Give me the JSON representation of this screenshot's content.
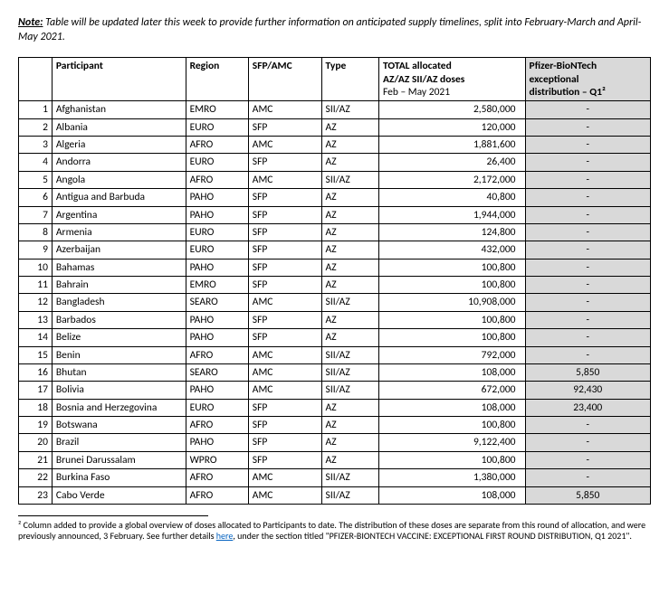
{
  "note_label": "Note:",
  "note_text": " Table will be updated later this week to provide further information on anticipated supply timelines, split into February-March and April-May 2021.",
  "headers": {
    "participant": "Participant",
    "region": "Region",
    "sfp_amc": "SFP/AMC",
    "type": "Type",
    "total_l1": "TOTAL allocated",
    "total_l2": "AZ/AZ SII/AZ doses",
    "total_l3": "Feb – May 2021",
    "pfizer_l1": "Pfizer-BioNTech",
    "pfizer_l2": "exceptional",
    "pfizer_l3": "distribution – Q1²"
  },
  "rows": [
    {
      "n": "1",
      "participant": "Afghanistan",
      "region": "EMRO",
      "sfp": "AMC",
      "type": "SII/AZ",
      "total": "2,580,000",
      "pfz": "-"
    },
    {
      "n": "2",
      "participant": "Albania",
      "region": "EURO",
      "sfp": "SFP",
      "type": "AZ",
      "total": "120,000",
      "pfz": "-"
    },
    {
      "n": "3",
      "participant": "Algeria",
      "region": "AFRO",
      "sfp": "AMC",
      "type": "AZ",
      "total": "1,881,600",
      "pfz": "-"
    },
    {
      "n": "4",
      "participant": "Andorra",
      "region": "EURO",
      "sfp": "SFP",
      "type": "AZ",
      "total": "26,400",
      "pfz": "-"
    },
    {
      "n": "5",
      "participant": "Angola",
      "region": "AFRO",
      "sfp": "AMC",
      "type": "SII/AZ",
      "total": "2,172,000",
      "pfz": "-"
    },
    {
      "n": "6",
      "participant": "Antigua and Barbuda",
      "region": "PAHO",
      "sfp": "SFP",
      "type": "AZ",
      "total": "40,800",
      "pfz": "-"
    },
    {
      "n": "7",
      "participant": "Argentina",
      "region": "PAHO",
      "sfp": "SFP",
      "type": "AZ",
      "total": "1,944,000",
      "pfz": "-"
    },
    {
      "n": "8",
      "participant": "Armenia",
      "region": "EURO",
      "sfp": "SFP",
      "type": "AZ",
      "total": "124,800",
      "pfz": "-"
    },
    {
      "n": "9",
      "participant": "Azerbaijan",
      "region": "EURO",
      "sfp": "SFP",
      "type": "AZ",
      "total": "432,000",
      "pfz": "-"
    },
    {
      "n": "10",
      "participant": "Bahamas",
      "region": "PAHO",
      "sfp": "SFP",
      "type": "AZ",
      "total": "100,800",
      "pfz": "-"
    },
    {
      "n": "11",
      "participant": "Bahrain",
      "region": "EMRO",
      "sfp": "SFP",
      "type": "AZ",
      "total": "100,800",
      "pfz": "-"
    },
    {
      "n": "12",
      "participant": "Bangladesh",
      "region": "SEARO",
      "sfp": "AMC",
      "type": "SII/AZ",
      "total": "10,908,000",
      "pfz": "-"
    },
    {
      "n": "13",
      "participant": "Barbados",
      "region": "PAHO",
      "sfp": "SFP",
      "type": "AZ",
      "total": "100,800",
      "pfz": "-"
    },
    {
      "n": "14",
      "participant": "Belize",
      "region": "PAHO",
      "sfp": "SFP",
      "type": "AZ",
      "total": "100,800",
      "pfz": "-"
    },
    {
      "n": "15",
      "participant": "Benin",
      "region": "AFRO",
      "sfp": "AMC",
      "type": "SII/AZ",
      "total": "792,000",
      "pfz": "-"
    },
    {
      "n": "16",
      "participant": "Bhutan",
      "region": "SEARO",
      "sfp": "AMC",
      "type": "SII/AZ",
      "total": "108,000",
      "pfz": "5,850"
    },
    {
      "n": "17",
      "participant": "Bolivia",
      "region": "PAHO",
      "sfp": "AMC",
      "type": "SII/AZ",
      "total": "672,000",
      "pfz": "92,430"
    },
    {
      "n": "18",
      "participant": "Bosnia and Herzegovina",
      "region": "EURO",
      "sfp": "SFP",
      "type": "AZ",
      "total": "108,000",
      "pfz": "23,400"
    },
    {
      "n": "19",
      "participant": "Botswana",
      "region": "AFRO",
      "sfp": "SFP",
      "type": "AZ",
      "total": "100,800",
      "pfz": "-"
    },
    {
      "n": "20",
      "participant": "Brazil",
      "region": "PAHO",
      "sfp": "SFP",
      "type": "AZ",
      "total": "9,122,400",
      "pfz": "-"
    },
    {
      "n": "21",
      "participant": "Brunei Darussalam",
      "region": "WPRO",
      "sfp": "SFP",
      "type": "AZ",
      "total": "100,800",
      "pfz": "-"
    },
    {
      "n": "22",
      "participant": "Burkina Faso",
      "region": "AFRO",
      "sfp": "AMC",
      "type": "SII/AZ",
      "total": "1,380,000",
      "pfz": "-"
    },
    {
      "n": "23",
      "participant": "Cabo Verde",
      "region": "AFRO",
      "sfp": "AMC",
      "type": "SII/AZ",
      "total": "108,000",
      "pfz": "5,850"
    }
  ],
  "footnote_pre": "² Column added to provide a global overview of doses allocated to Participants to date. The distribution of these doses are separate from this round of allocation, and were previously announced, 3 February. See further details ",
  "footnote_link": "here",
  "footnote_post": ", under the section titled \"PFIZER-BIONTECH VACCINE: EXCEPTIONAL FIRST ROUND DISTRIBUTION, Q1 2021\"."
}
